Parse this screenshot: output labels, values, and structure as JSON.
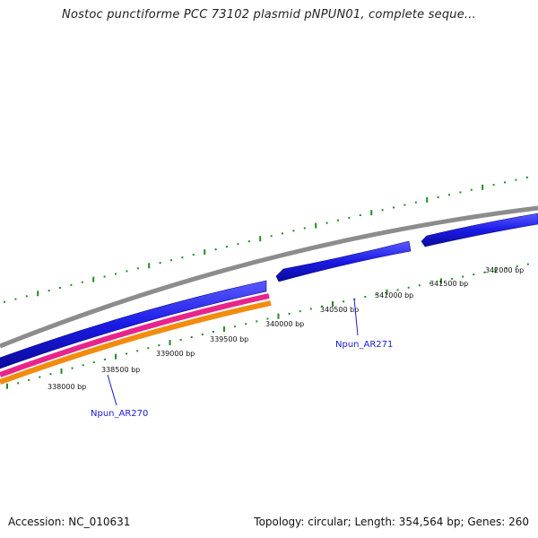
{
  "title": "Nostoc punctiforme PCC 73102 plasmid pNPUN01, complete seque...",
  "ruler": {
    "labels": [
      "338000 bp",
      "338500 bp",
      "339000 bp",
      "339500 bp",
      "340000 bp",
      "340500 bp",
      "341000 bp",
      "341500 bp",
      "342000 bp"
    ],
    "tick_color": "#228b22"
  },
  "genes": [
    {
      "name": "Npun_AR270"
    },
    {
      "name": "Npun_AR271"
    }
  ],
  "colors": {
    "backbone": "#8c8c8c",
    "cds_forward": "#1a1ae6",
    "rna_magenta": "#e8248c",
    "rna_orange": "#f28c0f",
    "gene_label": "#1a1adb"
  },
  "footer": {
    "accession": "Accession: NC_010631",
    "summary": "Topology: circular; Length: 354,564 bp; Genes: 260"
  }
}
